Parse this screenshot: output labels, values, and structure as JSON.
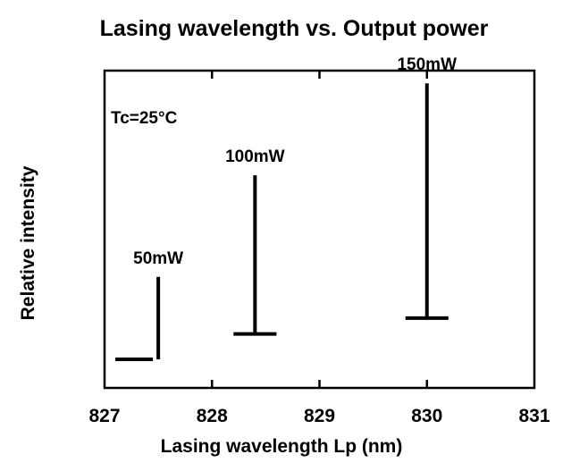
{
  "chart_data": {
    "type": "bar",
    "title": "Lasing wavelength vs. Output power",
    "xlabel": "Lasing wavelength  Lp (nm)",
    "ylabel": "Relative intensity",
    "xlim": [
      827,
      831
    ],
    "x_ticks": [
      "827",
      "828",
      "829",
      "830",
      "831"
    ],
    "ylim": [
      0,
      1
    ],
    "y_ticks_labeled": false,
    "grid": false,
    "annotation": "Tc=25°C",
    "series": [
      {
        "name": "50mW",
        "x": 827.5,
        "y": 0.35
      },
      {
        "name": "100mW",
        "x": 828.4,
        "y": 0.67
      },
      {
        "name": "150mW",
        "x": 830.0,
        "y": 0.96
      }
    ],
    "baselines": [
      {
        "x_from": 827.1,
        "x_to": 827.45,
        "y": 0.09
      },
      {
        "x_from": 828.2,
        "x_to": 828.6,
        "y": 0.17
      },
      {
        "x_from": 829.8,
        "x_to": 830.2,
        "y": 0.22
      }
    ]
  },
  "colors": {
    "ink": "#000000",
    "background": "#ffffff"
  }
}
